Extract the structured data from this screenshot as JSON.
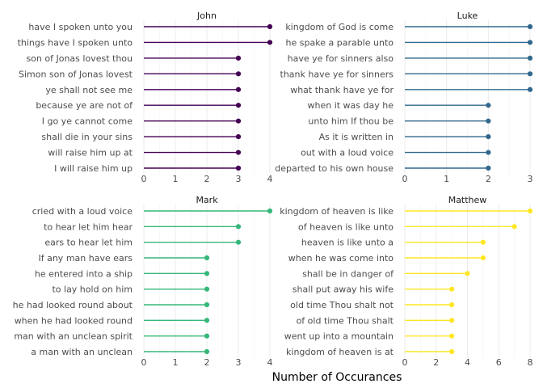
{
  "chart_data": {
    "type": "lollipop",
    "xlabel": "Number of Occurances",
    "ylabel": "",
    "grid": true,
    "legend": "none",
    "facets": [
      {
        "name": "John",
        "color": "#440154",
        "xlim": [
          0,
          4
        ],
        "xticks": [
          0,
          1,
          2,
          3,
          4
        ],
        "categories": [
          "have I spoken unto you",
          "things have I spoken unto",
          "son of Jonas lovest thou",
          "Simon son of Jonas lovest",
          "ye shall not see me",
          "because ye are not of",
          "I go ye cannot come",
          "shall die in your sins",
          "will raise him up at",
          "I will raise him up"
        ],
        "values": [
          4,
          4,
          3,
          3,
          3,
          3,
          3,
          3,
          3,
          3
        ]
      },
      {
        "name": "Luke",
        "color": "#31688e",
        "xlim": [
          0,
          3
        ],
        "xticks": [
          0,
          1,
          2,
          3
        ],
        "categories": [
          "kingdom of God is come",
          "he spake a parable unto",
          "have ye for sinners also",
          "thank have ye for sinners",
          "what thank have ye for",
          "when it was day he",
          "unto him If thou be",
          "As it is written in",
          "out with a loud voice",
          "departed to his own house"
        ],
        "values": [
          3,
          3,
          3,
          3,
          3,
          2,
          2,
          2,
          2,
          2
        ]
      },
      {
        "name": "Mark",
        "color": "#35b779",
        "xlim": [
          0,
          4
        ],
        "xticks": [
          0,
          1,
          2,
          3,
          4
        ],
        "categories": [
          "cried with a loud voice",
          "to hear let him hear",
          "ears to hear let him",
          "If any man have ears",
          "he entered into a ship",
          "to lay hold on him",
          "he had looked round about",
          "when he had looked round",
          "man with an unclean spirit",
          "a man with an unclean"
        ],
        "values": [
          4,
          3,
          3,
          2,
          2,
          2,
          2,
          2,
          2,
          2
        ]
      },
      {
        "name": "Matthew",
        "color": "#fde725",
        "xlim": [
          0,
          8
        ],
        "xticks": [
          0,
          2,
          4,
          6,
          8
        ],
        "categories": [
          "kingdom of heaven is like",
          "of heaven is like unto",
          "heaven is like unto a",
          "when he was come into",
          "shall be in danger of",
          "shall put away his wife",
          "old time Thou shalt not",
          "of old time Thou shalt",
          "went up into a mountain",
          "kingdom of heaven is at"
        ],
        "values": [
          8,
          7,
          5,
          5,
          4,
          3,
          3,
          3,
          3,
          3
        ]
      }
    ]
  }
}
